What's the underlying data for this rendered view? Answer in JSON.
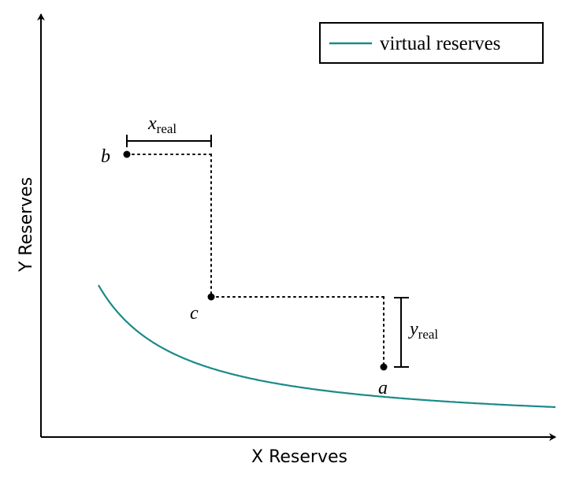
{
  "axes": {
    "xlabel": "X Reserves",
    "ylabel": "Y Reserves"
  },
  "legend": {
    "label": "virtual reserves",
    "placement": "top-right"
  },
  "points": {
    "a": {
      "label": "a"
    },
    "b": {
      "label": "b"
    },
    "c": {
      "label": "c"
    }
  },
  "intervals": {
    "x_real": {
      "main": "x",
      "sub": "real"
    },
    "y_real": {
      "main": "y",
      "sub": "real"
    }
  },
  "colors": {
    "curve": "#1a8a8a",
    "axes": "#000000",
    "guides": "#000000"
  }
}
